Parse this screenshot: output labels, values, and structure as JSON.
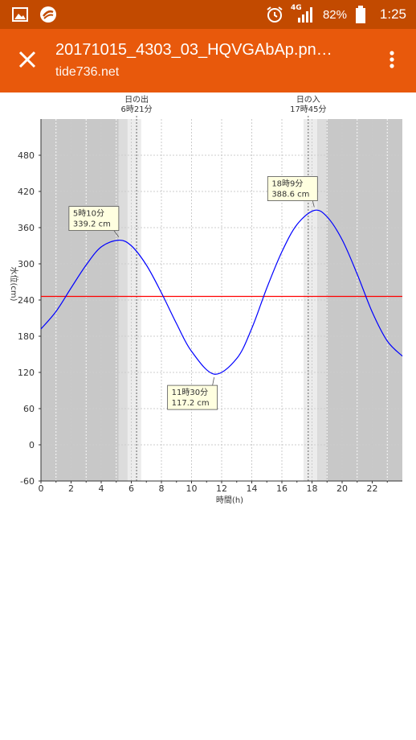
{
  "status_bar": {
    "time": "1:25",
    "battery_percent": "82%",
    "network": "4G",
    "icons": [
      "gallery-icon",
      "app-icon",
      "alarm-icon",
      "signal-icon",
      "battery-icon"
    ]
  },
  "app_bar": {
    "title": "20171015_4303_03_HQVGAbAp.pn…",
    "subtitle": "tide736.net",
    "background": "#e8590c",
    "status_background": "#c24a00"
  },
  "chart_data": {
    "type": "line",
    "ylabel": "水位(cm)",
    "xlabel": "時間(h)",
    "xlim": [
      0,
      24
    ],
    "ylim": [
      -60,
      540
    ],
    "x_ticks": [
      0,
      2,
      4,
      6,
      8,
      10,
      12,
      14,
      16,
      18,
      20,
      22
    ],
    "y_ticks": [
      -60,
      0,
      60,
      120,
      180,
      240,
      300,
      360,
      420,
      480
    ],
    "grid": true,
    "reference_line": {
      "value": 246,
      "color": "#ff0000"
    },
    "series": [
      {
        "color": "#0000ff",
        "x": [
          0,
          1,
          2,
          3,
          4,
          5.1667,
          6,
          7,
          8,
          9,
          10,
          11.5,
          13,
          14,
          15,
          16,
          17,
          18.15,
          19,
          20,
          21,
          22,
          23,
          24
        ],
        "y": [
          192,
          221,
          260,
          298,
          328,
          339.2,
          330,
          298,
          252,
          201,
          155,
          117.2,
          143,
          193,
          260,
          320,
          365,
          388.6,
          378,
          340,
          283,
          220,
          172,
          147
        ]
      }
    ],
    "annotations": [
      {
        "x": 5.1667,
        "y": 339.2,
        "time": "5時10分",
        "value": "339.2 cm"
      },
      {
        "x": 11.5,
        "y": 117.2,
        "time": "11時30分",
        "value": "117.2 cm"
      },
      {
        "x": 18.15,
        "y": 388.6,
        "time": "18時9分",
        "value": "388.6 cm"
      }
    ],
    "sunrise": {
      "x": 6.35,
      "label": "日の出",
      "time": "6時21分"
    },
    "sunset": {
      "x": 17.75,
      "label": "日の入",
      "time": "17時45分"
    },
    "colors": {
      "night": "#c8c8c8",
      "twilight_dark": "#dcdcdc",
      "twilight_light": "#ececec",
      "day": "#ffffff"
    }
  }
}
